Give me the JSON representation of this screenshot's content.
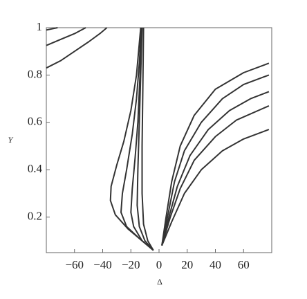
{
  "chart_data": {
    "type": "line",
    "xlabel": "Δ",
    "ylabel": "Y",
    "color": "#333333",
    "xlim": [
      -80,
      80
    ],
    "ylim": [
      0.05,
      1
    ],
    "xticks": [
      {
        "value": -60,
        "label": "−60"
      },
      {
        "value": -40,
        "label": "−40"
      },
      {
        "value": -20,
        "label": "−20"
      },
      0,
      20,
      40,
      60
    ],
    "yticks": [
      0.2,
      0.4,
      0.6,
      0.8,
      1
    ],
    "series": [
      {
        "x": [
          -80,
          -76,
          -72
        ],
        "values": [
          0.99,
          0.995,
          1
        ]
      },
      {
        "x": [
          -80,
          -70,
          -60,
          -52
        ],
        "values": [
          0.925,
          0.95,
          0.975,
          1
        ]
      },
      {
        "x": [
          -80,
          -70,
          -60,
          -50,
          -42,
          -37
        ],
        "values": [
          0.83,
          0.86,
          0.9,
          0.94,
          0.975,
          1
        ]
      },
      {
        "x": [
          -4,
          -12,
          -22,
          -31,
          -34.5,
          -34,
          -30,
          -25,
          -20,
          -16,
          -13
        ],
        "values": [
          0.06,
          0.1,
          0.15,
          0.21,
          0.27,
          0.33,
          0.42,
          0.52,
          0.65,
          0.8,
          1
        ]
      },
      {
        "x": [
          -4,
          -14,
          -23,
          -27,
          -26,
          -23,
          -19,
          -16,
          -14,
          -12.5
        ],
        "values": [
          0.06,
          0.11,
          0.16,
          0.22,
          0.3,
          0.4,
          0.55,
          0.7,
          0.85,
          1
        ]
      },
      {
        "x": [
          -4,
          -12,
          -18,
          -20,
          -19,
          -17,
          -15,
          -13.5,
          -12.5
        ],
        "values": [
          0.06,
          0.1,
          0.16,
          0.22,
          0.32,
          0.45,
          0.6,
          0.8,
          1
        ]
      },
      {
        "x": [
          -4,
          -10,
          -14,
          -15.5,
          -15,
          -14,
          -13,
          -12
        ],
        "values": [
          0.06,
          0.1,
          0.16,
          0.25,
          0.4,
          0.6,
          0.8,
          1
        ]
      },
      {
        "x": [
          -4,
          -8,
          -11,
          -12,
          -12,
          -11.5,
          -11
        ],
        "values": [
          0.06,
          0.1,
          0.17,
          0.3,
          0.5,
          0.75,
          1
        ]
      },
      {
        "x": [
          2,
          5,
          9,
          15,
          25,
          40,
          60,
          78
        ],
        "values": [
          0.08,
          0.2,
          0.35,
          0.5,
          0.63,
          0.74,
          0.81,
          0.85
        ]
      },
      {
        "x": [
          2,
          6,
          11,
          18,
          30,
          45,
          60,
          78
        ],
        "values": [
          0.08,
          0.2,
          0.35,
          0.48,
          0.6,
          0.7,
          0.76,
          0.8
        ]
      },
      {
        "x": [
          2,
          7,
          13,
          22,
          35,
          50,
          65,
          78
        ],
        "values": [
          0.08,
          0.2,
          0.33,
          0.46,
          0.57,
          0.65,
          0.7,
          0.73
        ]
      },
      {
        "x": [
          2,
          8,
          15,
          25,
          40,
          55,
          78
        ],
        "values": [
          0.08,
          0.2,
          0.32,
          0.44,
          0.54,
          0.61,
          0.67
        ]
      },
      {
        "x": [
          2,
          9,
          18,
          30,
          45,
          60,
          78
        ],
        "values": [
          0.08,
          0.18,
          0.3,
          0.4,
          0.48,
          0.53,
          0.57
        ]
      }
    ]
  }
}
